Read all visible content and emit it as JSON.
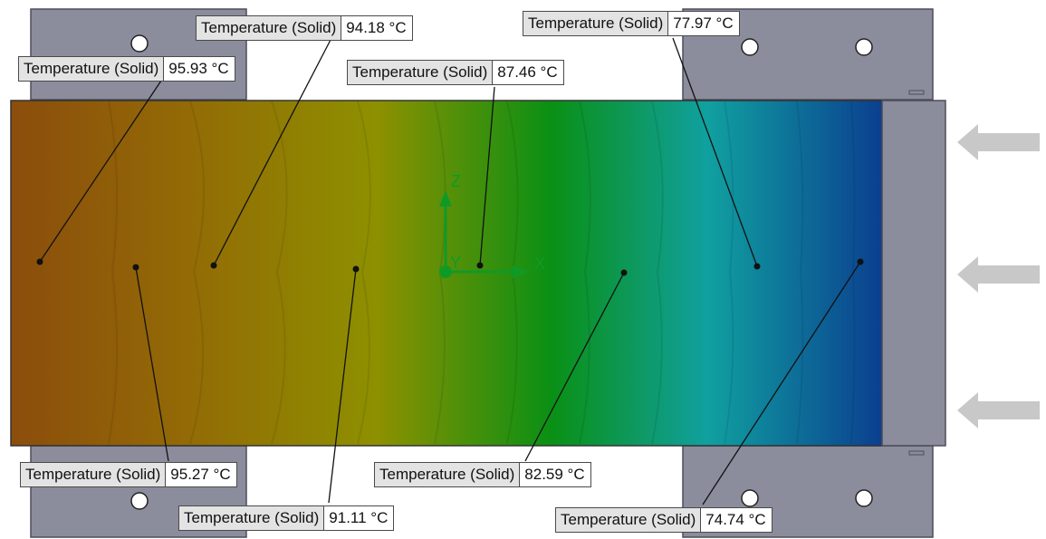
{
  "axis_triad": {
    "z_label": "Z",
    "y_label": "Y",
    "x_label": "X"
  },
  "colors": {
    "hot": "#8b4d0c",
    "warm": "#8e9000",
    "mid": "#0a9014",
    "cool": "#10a0a0",
    "cold": "#0b3f90",
    "fixture": "#8b8d9d",
    "arrow": "#c8c8c8"
  },
  "probes": [
    {
      "label": "Temperature (Solid)",
      "value": "95.93 °C"
    },
    {
      "label": "Temperature (Solid)",
      "value": "94.18 °C"
    },
    {
      "label": "Temperature (Solid)",
      "value": "87.46 °C"
    },
    {
      "label": "Temperature (Solid)",
      "value": "77.97 °C"
    },
    {
      "label": "Temperature (Solid)",
      "value": "95.27 °C"
    },
    {
      "label": "Temperature (Solid)",
      "value": "91.11 °C"
    },
    {
      "label": "Temperature (Solid)",
      "value": "82.59 °C"
    },
    {
      "label": "Temperature (Solid)",
      "value": "74.74 °C"
    }
  ]
}
